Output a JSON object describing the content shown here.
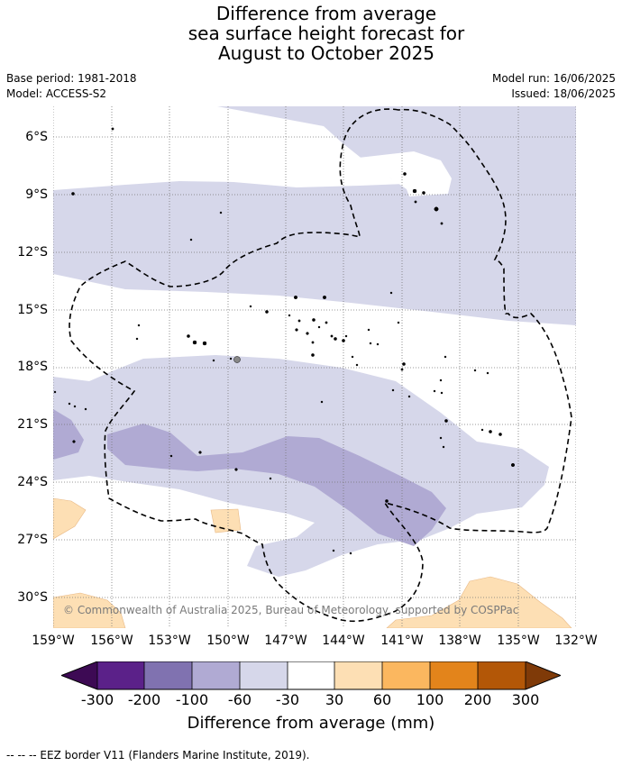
{
  "title": {
    "line1": "Difference from average",
    "line2": "sea surface height forecast for",
    "line3": "August to October 2025"
  },
  "meta": {
    "base_period": "Base period: 1981-2018",
    "model": "Model: ACCESS-S2",
    "model_run": "Model run: 16/06/2025",
    "issued": "Issued: 18/06/2025"
  },
  "map": {
    "lon_range": [
      -159,
      -132
    ],
    "lat_range": [
      -31.6,
      -4.5
    ],
    "lat_ticks": [
      {
        "value": -6,
        "label": "6°S"
      },
      {
        "value": -9,
        "label": "9°S"
      },
      {
        "value": -12,
        "label": "12°S"
      },
      {
        "value": -15,
        "label": "15°S"
      },
      {
        "value": -18,
        "label": "18°S"
      },
      {
        "value": -21,
        "label": "21°S"
      },
      {
        "value": -24,
        "label": "24°S"
      },
      {
        "value": -27,
        "label": "27°S"
      },
      {
        "value": -30,
        "label": "30°S"
      }
    ],
    "lon_ticks": [
      {
        "value": -159,
        "label": "159°W"
      },
      {
        "value": -156,
        "label": "156°W"
      },
      {
        "value": -153,
        "label": "153°W"
      },
      {
        "value": -150,
        "label": "150°W"
      },
      {
        "value": -147,
        "label": "147°W"
      },
      {
        "value": -144,
        "label": "144°W"
      },
      {
        "value": -141,
        "label": "141°W"
      },
      {
        "value": -138,
        "label": "138°W"
      },
      {
        "value": -135,
        "label": "135°W"
      },
      {
        "value": -132,
        "label": "132°W"
      }
    ],
    "gridlines": "dotted",
    "copyright": "© Commonwealth of Australia 2025, Bureau of Meteorology, supported by COSPPac"
  },
  "colorbar": {
    "title": "Difference from average (mm)",
    "labels": [
      "-300",
      "-200",
      "-100",
      "-60",
      "-30",
      "30",
      "60",
      "100",
      "200",
      "300"
    ],
    "colors": [
      "#3d0a54",
      "#5b2189",
      "#8072b0",
      "#b0aad3",
      "#d6d7ea",
      "#ffffff",
      "#fddfb4",
      "#fbb75f",
      "#e3841b",
      "#b35707",
      "#7f3a08"
    ]
  },
  "footnote": "--  --  -- EEZ border V11 (Flanders Marine Institute, 2019)."
}
